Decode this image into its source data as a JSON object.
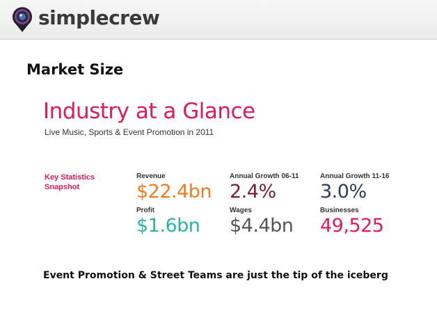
{
  "header": {
    "brand": "simplecrew"
  },
  "slide": {
    "title": "Market Size"
  },
  "infographic": {
    "title": "Industry at a Glance",
    "subtitle": "Live Music, Sports & Event Promotion in 2011",
    "key_stats_label_line1": "Key Statistics",
    "key_stats_label_line2": "Snapshot",
    "stats": [
      {
        "label": "Revenue",
        "value": "$22.4bn",
        "color": "#f47b20"
      },
      {
        "label": "Annual Growth 06-11",
        "value": "2.4%",
        "color": "#7a1f35"
      },
      {
        "label": "Annual Growth 11-16",
        "value": "3.0%",
        "color": "#2b3a5e"
      },
      {
        "label": "Profit",
        "value": "$1.6bn",
        "color": "#2bb6a3"
      },
      {
        "label": "Wages",
        "value": "$4.4bn",
        "color": "#555555"
      },
      {
        "label": "Businesses",
        "value": "49,525",
        "color": "#e4195a"
      }
    ]
  },
  "footer": {
    "tagline": "Event Promotion & Street Teams are just the tip of the iceberg"
  },
  "colors": {
    "accent": "#e4195a",
    "logo_ring": "#7b3fa0"
  }
}
